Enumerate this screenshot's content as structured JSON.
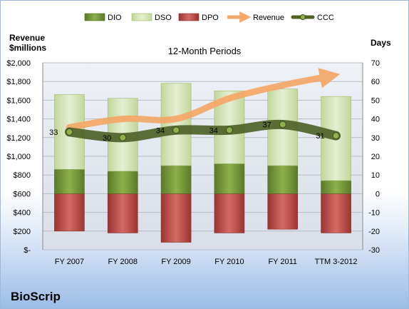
{
  "company": "BioScrip",
  "chart_data": {
    "type": "bar",
    "title": "12-Month Periods",
    "left_axis_title": [
      "Revenue",
      "$millions"
    ],
    "right_axis_title": "Days",
    "categories": [
      "FY 2007",
      "FY 2008",
      "FY 2009",
      "FY 2010",
      "FY 2011",
      "TTM 3-2012"
    ],
    "left_ticks": [
      "$-",
      "$200",
      "$400",
      "$600",
      "$800",
      "$1,000",
      "$1,200",
      "$1,400",
      "$1,600",
      "$1,800",
      "$2,000"
    ],
    "right_ticks": [
      "-30",
      "-20",
      "-10",
      "0",
      "10",
      "20",
      "30",
      "40",
      "50",
      "60",
      "70"
    ],
    "ylim_left": [
      0,
      2000
    ],
    "ylim_right": [
      -30,
      70
    ],
    "legend_position": "top",
    "stacked_bars": [
      {
        "name": "DIO",
        "values": [
          13,
          12,
          15,
          16,
          15,
          7
        ],
        "color": "#77933c"
      },
      {
        "name": "DSO",
        "values": [
          40,
          39,
          44,
          39,
          41,
          45
        ],
        "color": "#d7e4bd"
      },
      {
        "name": "DPO",
        "values": [
          -20,
          -21,
          -26,
          -21,
          -19,
          -21
        ],
        "color": "#c0504d"
      }
    ],
    "lines": [
      {
        "name": "Revenue",
        "values": [
          1310,
          1400,
          1400,
          1620,
          1760,
          1850
        ],
        "color": "#f79646"
      },
      {
        "name": "CCC",
        "values": [
          33,
          30,
          34,
          34,
          37,
          31
        ],
        "color": "#4f6228"
      }
    ]
  }
}
